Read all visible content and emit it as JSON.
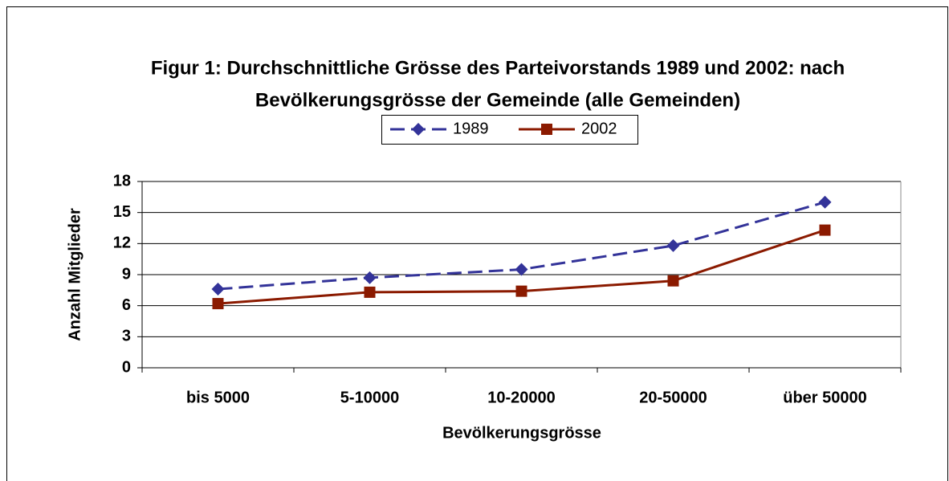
{
  "chart_data": {
    "type": "line",
    "title": [
      "Figur 1:  Durchschnittliche Grösse des Parteivorstands 1989 und 2002: nach",
      "Bevölkerungsgrösse der Gemeinde (alle Gemeinden)"
    ],
    "x_label": "Bevölkerungsgrösse",
    "y_label": "Anzahl Mitglieder",
    "categories": [
      "bis 5000",
      "5-10000",
      "10-20000",
      "20-50000",
      "über 50000"
    ],
    "series": [
      {
        "name": "1989",
        "color": "#333399",
        "dash": true,
        "marker": "diamond",
        "values": [
          7.6,
          8.7,
          9.5,
          11.8,
          16.0
        ]
      },
      {
        "name": "2002",
        "color": "#8b1a00",
        "dash": false,
        "marker": "square",
        "values": [
          6.2,
          7.3,
          7.4,
          8.4,
          13.3
        ]
      }
    ],
    "ylim": [
      0,
      18
    ],
    "yticks": [
      0,
      3,
      6,
      9,
      12,
      15,
      18
    ],
    "grid": true,
    "legend": "top"
  }
}
